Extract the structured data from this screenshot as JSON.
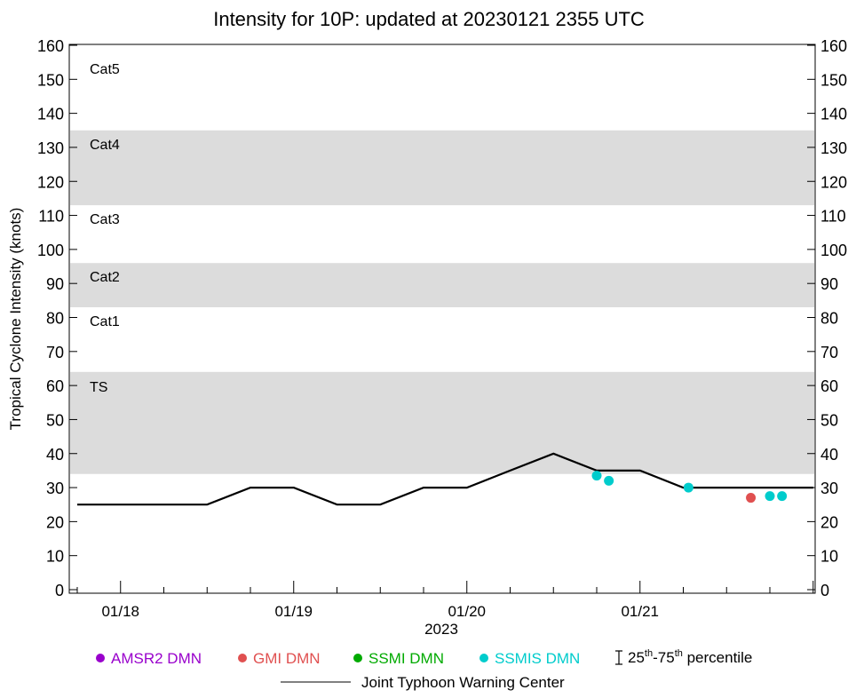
{
  "chart_data": {
    "type": "line",
    "title": "Intensity for 10P: updated at 20230121 2355 UTC",
    "ylabel": "Tropical Cyclone Intensity (knots)",
    "xlabel": "2023",
    "ylim": [
      0,
      160
    ],
    "xlim_days": [
      17.75,
      22.0
    ],
    "yticks": [
      0,
      10,
      20,
      30,
      40,
      50,
      60,
      70,
      80,
      90,
      100,
      110,
      120,
      130,
      140,
      150,
      160
    ],
    "xticks": [
      {
        "label": "01/18",
        "day": 18.0
      },
      {
        "label": "01/19",
        "day": 19.0
      },
      {
        "label": "01/20",
        "day": 20.0
      },
      {
        "label": "01/21",
        "day": 21.0
      }
    ],
    "bands": [
      {
        "label": "TS",
        "from": 34,
        "to": 64,
        "shaded": true
      },
      {
        "label": "Cat1",
        "from": 64,
        "to": 83,
        "shaded": false
      },
      {
        "label": "Cat2",
        "from": 83,
        "to": 96,
        "shaded": true
      },
      {
        "label": "Cat3",
        "from": 96,
        "to": 113,
        "shaded": false
      },
      {
        "label": "Cat4",
        "from": 113,
        "to": 135,
        "shaded": true
      },
      {
        "label": "Cat5",
        "from": 135,
        "to": 160,
        "shaded": false
      }
    ],
    "band_color": "#dcdcdc",
    "series": [
      {
        "name": "Joint Typhoon Warning Center",
        "kind": "line",
        "color": "#000000",
        "x_days": [
          17.75,
          18.0,
          18.25,
          18.5,
          18.75,
          19.0,
          19.25,
          19.5,
          19.75,
          20.0,
          20.25,
          20.5,
          20.75,
          21.0,
          21.25,
          21.5,
          21.75,
          22.0
        ],
        "values": [
          25,
          25,
          25,
          25,
          30,
          30,
          25,
          25,
          30,
          30,
          35,
          40,
          35,
          35,
          30,
          30,
          30,
          30
        ]
      },
      {
        "name": "SSMIS DMN",
        "kind": "points",
        "color": "#00cccc",
        "x_days": [
          20.75,
          20.82,
          21.28,
          21.75,
          21.82
        ],
        "values": [
          33.5,
          32,
          30,
          27.5,
          27.5
        ]
      },
      {
        "name": "GMI DMN",
        "kind": "points",
        "color": "#e05050",
        "x_days": [
          21.64
        ],
        "values": [
          27
        ]
      },
      {
        "name": "AMSR2 DMN",
        "kind": "points",
        "color": "#9900cc",
        "x_days": [],
        "values": []
      },
      {
        "name": "SSMI DMN",
        "kind": "points",
        "color": "#00aa00",
        "x_days": [],
        "values": []
      }
    ],
    "legend": {
      "placement": "bottom",
      "items": [
        {
          "label": "AMSR2 DMN",
          "color": "#9900cc"
        },
        {
          "label": "GMI DMN",
          "color": "#e05050"
        },
        {
          "label": "SSMI DMN",
          "color": "#00aa00"
        },
        {
          "label": "SSMIS DMN",
          "color": "#00cccc"
        }
      ],
      "percentile_pre": "25",
      "percentile_sup1": "th",
      "percentile_mid": "-75",
      "percentile_sup2": "th",
      "percentile_post": " percentile",
      "line_label": "Joint Typhoon Warning Center"
    }
  }
}
